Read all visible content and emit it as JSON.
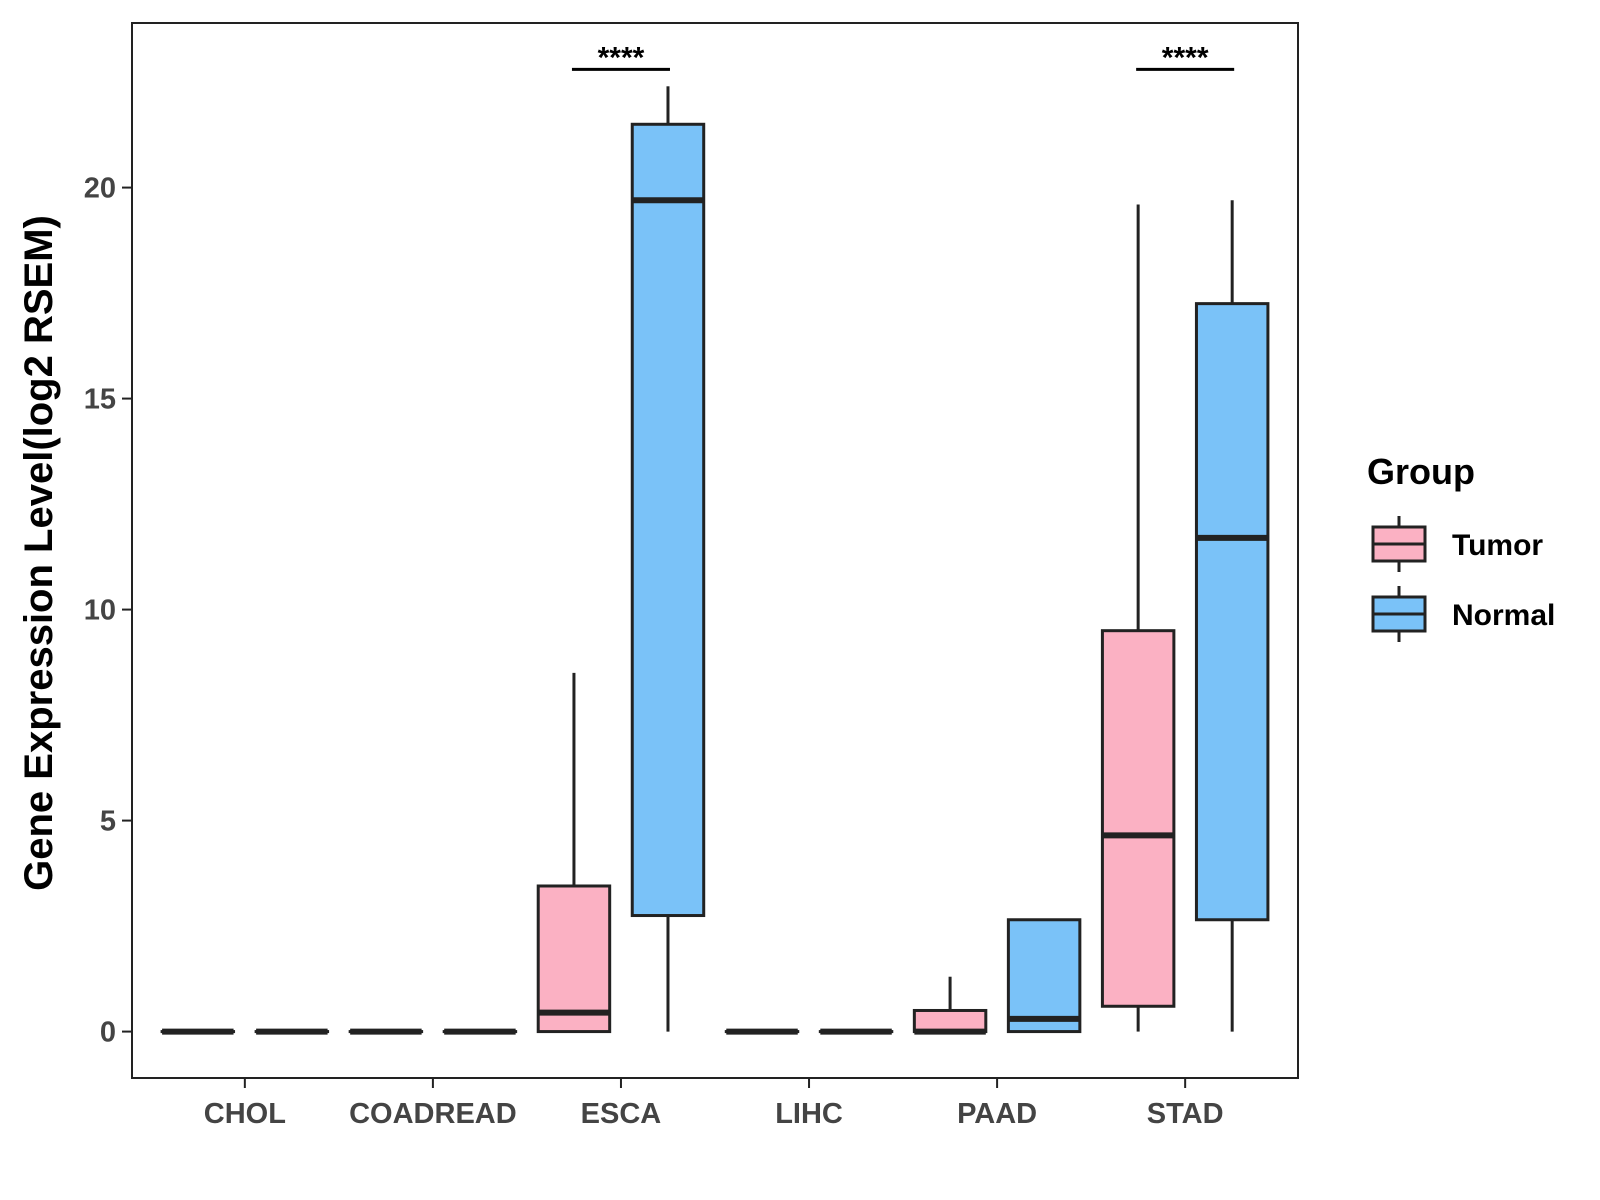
{
  "chart_data": {
    "type": "boxplot",
    "ylabel": "Gene Expression Level(log2 RSEM)",
    "xlabel": "",
    "ylim": [
      -1.1,
      23.9
    ],
    "yticks": [
      0,
      5,
      10,
      15,
      20
    ],
    "categories": [
      "CHOL",
      "COADREAD",
      "ESCA",
      "LIHC",
      "PAAD",
      "STAD"
    ],
    "grid": false,
    "legend": {
      "title": "Group",
      "placement": "right",
      "entries": [
        {
          "name": "Tumor",
          "color": "#fbb1c3"
        },
        {
          "name": "Normal",
          "color": "#7ac2f8"
        }
      ]
    },
    "series": [
      {
        "name": "Tumor",
        "color": "#fbb1c3",
        "boxes": [
          {
            "category": "CHOL",
            "min": 0,
            "q1": 0,
            "median": 0,
            "q3": 0,
            "max": 0
          },
          {
            "category": "COADREAD",
            "min": 0,
            "q1": 0,
            "median": 0,
            "q3": 0,
            "max": 0
          },
          {
            "category": "ESCA",
            "min": 0,
            "q1": 0,
            "median": 0.45,
            "q3": 3.45,
            "max": 8.5
          },
          {
            "category": "LIHC",
            "min": 0,
            "q1": 0,
            "median": 0,
            "q3": 0,
            "max": 0
          },
          {
            "category": "PAAD",
            "min": 0,
            "q1": 0,
            "median": 0,
            "q3": 0.5,
            "max": 1.3
          },
          {
            "category": "STAD",
            "min": 0,
            "q1": 0.6,
            "median": 4.65,
            "q3": 9.5,
            "max": 19.6
          }
        ]
      },
      {
        "name": "Normal",
        "color": "#7ac2f8",
        "boxes": [
          {
            "category": "CHOL",
            "min": 0,
            "q1": 0,
            "median": 0,
            "q3": 0,
            "max": 0
          },
          {
            "category": "COADREAD",
            "min": 0,
            "q1": 0,
            "median": 0,
            "q3": 0,
            "max": 0
          },
          {
            "category": "ESCA",
            "min": 0,
            "q1": 2.75,
            "median": 19.7,
            "q3": 21.5,
            "max": 22.4
          },
          {
            "category": "LIHC",
            "min": 0,
            "q1": 0,
            "median": 0,
            "q3": 0,
            "max": 0
          },
          {
            "category": "PAAD",
            "min": 0,
            "q1": 0,
            "median": 0.3,
            "q3": 2.65,
            "max": 2.65
          },
          {
            "category": "STAD",
            "min": 0,
            "q1": 2.65,
            "median": 11.7,
            "q3": 17.25,
            "max": 19.7
          }
        ]
      }
    ],
    "annotations": [
      {
        "category": "ESCA",
        "text": "****",
        "y": 22.8
      },
      {
        "category": "STAD",
        "text": "****",
        "y": 22.8
      }
    ]
  }
}
